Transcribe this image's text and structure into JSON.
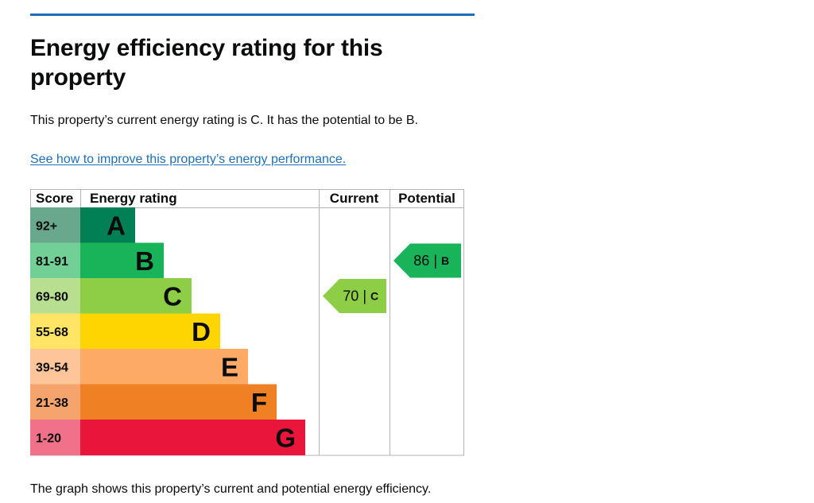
{
  "page": {
    "heading": "Energy efficiency rating for this property",
    "summary": "This property’s current energy rating is C. It has the potential to be B.",
    "improve_link": "See how to improve this property’s energy performance.",
    "caption": "The graph shows this property’s current and potential energy efficiency."
  },
  "colors": {
    "link": "#1d70b8",
    "rule": "#1d70b8"
  },
  "chart_data": {
    "type": "bar",
    "columns": {
      "score": "Score",
      "rating": "Energy rating",
      "current": "Current",
      "potential": "Potential"
    },
    "bands": [
      {
        "score": "92+",
        "letter": "A",
        "bar_color": "#008054",
        "score_color": "#6aa88e"
      },
      {
        "score": "81-91",
        "letter": "B",
        "bar_color": "#19b459",
        "score_color": "#72cf95"
      },
      {
        "score": "69-80",
        "letter": "C",
        "bar_color": "#8dce46",
        "score_color": "#b8df8f"
      },
      {
        "score": "55-68",
        "letter": "D",
        "bar_color": "#ffd500",
        "score_color": "#ffe466"
      },
      {
        "score": "39-54",
        "letter": "E",
        "bar_color": "#fcaa65",
        "score_color": "#fdc599"
      },
      {
        "score": "21-38",
        "letter": "F",
        "bar_color": "#ef8023",
        "score_color": "#f4a46c"
      },
      {
        "score": "1-20",
        "letter": "G",
        "bar_color": "#e9153b",
        "score_color": "#f07189"
      }
    ],
    "current": {
      "value": 70,
      "letter": "C",
      "color": "#8dce46"
    },
    "potential": {
      "value": 86,
      "letter": "B",
      "color": "#19b459"
    }
  }
}
